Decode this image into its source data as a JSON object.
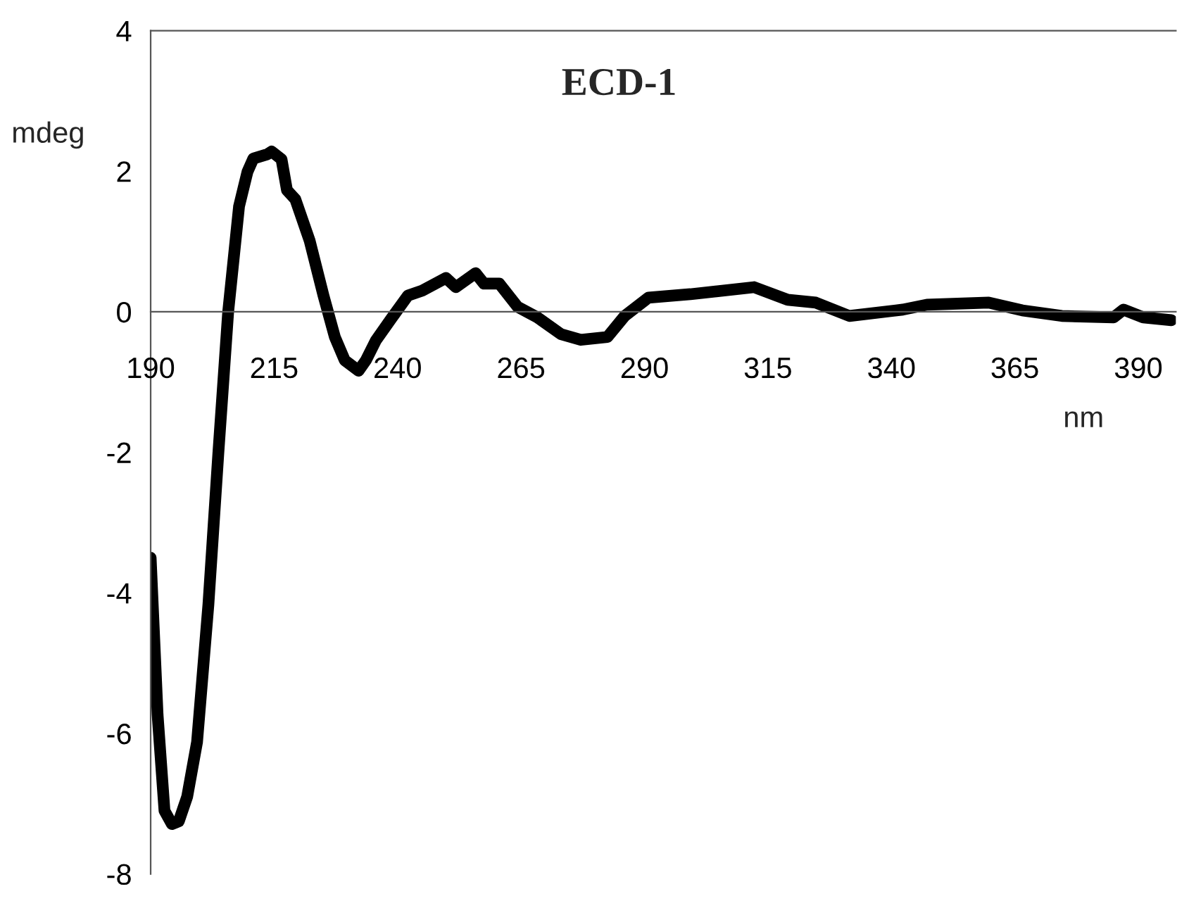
{
  "chart_data": {
    "type": "line",
    "title": "ECD-1",
    "xlabel": "nm",
    "ylabel": "mdeg",
    "xlim": [
      190,
      397.6
    ],
    "xticks": [
      190,
      215,
      240,
      265,
      290,
      315,
      340,
      365,
      390
    ],
    "ylim": [
      -8,
      4
    ],
    "yticks": [
      -8,
      -6,
      -4,
      -2,
      0,
      2,
      4
    ],
    "grid": false,
    "legend": false,
    "marker": "none",
    "line_style": "solid",
    "series": [
      {
        "color": "#000000",
        "x": [
          190,
          191.4,
          192.8,
          194.3,
          195.7,
          197.4,
          199.4,
          201.7,
          203.7,
          205.7,
          207.9,
          209.6,
          210.8,
          213.6,
          214.5,
          216.5,
          217.6,
          219.3,
          222.2,
          225.0,
          227.3,
          229.3,
          232.1,
          233.6,
          235.6,
          238.7,
          242.1,
          245.0,
          249.8,
          251.8,
          255.8,
          257.5,
          260.6,
          264.3,
          268.3,
          273.1,
          277.1,
          282.5,
          286.0,
          290.8,
          299.3,
          312.2,
          319.0,
          324.7,
          331.5,
          342.3,
          347.2,
          359.7,
          366.5,
          374.5,
          385.0,
          387.0,
          391.0,
          396.7
        ],
        "values": [
          -3.5,
          -5.73,
          -7.1,
          -7.29,
          -7.25,
          -6.9,
          -6.12,
          -4.16,
          -2.02,
          0,
          1.5,
          1.99,
          2.18,
          2.24,
          2.28,
          2.17,
          1.73,
          1.6,
          1.01,
          0.23,
          -0.36,
          -0.69,
          -0.84,
          -0.69,
          -0.41,
          -0.1,
          0.23,
          0.3,
          0.48,
          0.35,
          0.55,
          0.4,
          0.4,
          0.07,
          -0.08,
          -0.32,
          -0.4,
          -0.36,
          -0.06,
          0.2,
          0.25,
          0.35,
          0.17,
          0.13,
          -0.06,
          0.03,
          0.1,
          0.13,
          0.02,
          -0.06,
          -0.08,
          0.03,
          -0.08,
          -0.12
        ]
      }
    ]
  }
}
